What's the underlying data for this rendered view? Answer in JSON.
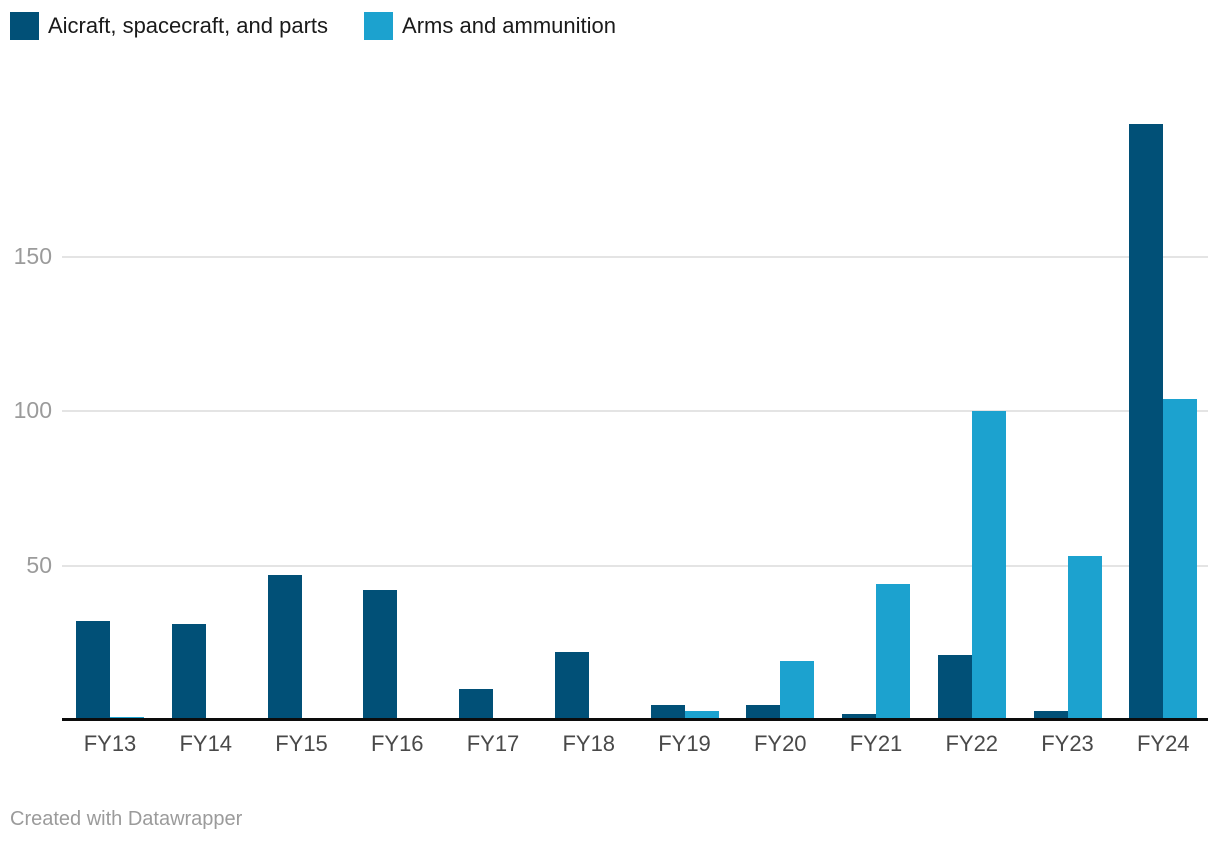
{
  "legend": {
    "items": [
      {
        "label": "Aicraft, spacecraft, and parts",
        "color": "#015077"
      },
      {
        "label": "Arms and ammunition",
        "color": "#1CA2CF"
      }
    ]
  },
  "footer": {
    "credit": "Created with Datawrapper"
  },
  "colors": {
    "series_dark_blue": "#015077",
    "series_light_blue": "#1CA2CF",
    "gridline": "#e4e4e4",
    "axis_line": "#0c0c0c",
    "y_tick_text": "#9b9b9b",
    "x_tick_text": "#494949",
    "legend_text": "#1a1a1a",
    "footer_text": "#9b9b9b",
    "background": "#ffffff"
  },
  "chart_data": {
    "type": "bar",
    "subtype": "grouped-column",
    "title": "",
    "xlabel": "",
    "ylabel": "",
    "categories": [
      "FY13",
      "FY14",
      "FY15",
      "FY16",
      "FY17",
      "FY18",
      "FY19",
      "FY20",
      "FY21",
      "FY22",
      "FY23",
      "FY24"
    ],
    "series": [
      {
        "name": "Aicraft, spacecraft, and parts",
        "color": "#015077",
        "values": [
          32,
          31,
          47,
          42,
          10,
          22,
          5,
          5,
          2,
          21,
          3,
          193
        ]
      },
      {
        "name": "Arms and ammunition",
        "color": "#1CA2CF",
        "values": [
          1,
          0,
          0,
          0,
          0,
          0,
          3,
          19,
          44,
          100,
          53,
          104
        ]
      }
    ],
    "y_ticks": [
      50,
      100,
      150
    ],
    "ylim": [
      0,
      197
    ],
    "grid": "horizontal",
    "legend_position": "top-left",
    "attribution": "Created with Datawrapper"
  }
}
